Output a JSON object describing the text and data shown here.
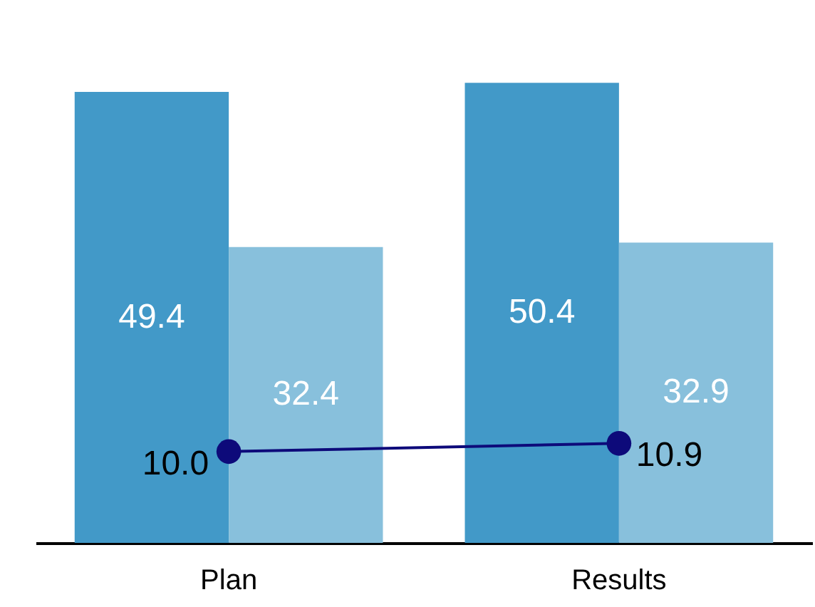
{
  "chart_data": {
    "type": "bar",
    "categories": [
      "Plan",
      "Results"
    ],
    "data_labels": true,
    "marker": "circle",
    "series": [
      {
        "color": "#4299c8",
        "values": [
          49.4,
          50.4
        ]
      },
      {
        "color": "#88c0dc",
        "values": [
          32.4,
          32.9
        ]
      },
      {
        "type": "line",
        "color": "#0d0a7a",
        "values": [
          10.0,
          10.9
        ],
        "value_labels": [
          "10.0",
          "10.9"
        ]
      }
    ]
  }
}
